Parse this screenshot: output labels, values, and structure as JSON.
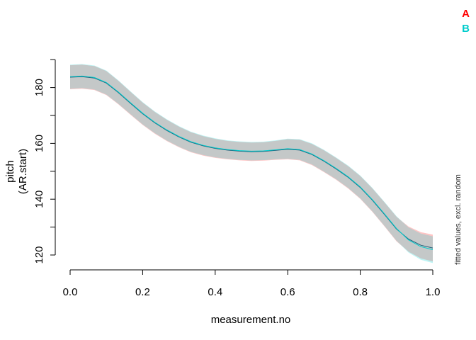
{
  "chart_data": {
    "type": "line",
    "xlabel": "measurement.no",
    "ylabel_lines": [
      "pitch",
      "(AR.start)"
    ],
    "side_note": "fitted values, excl. random",
    "xlim": [
      0,
      1
    ],
    "ylim": [
      117,
      189
    ],
    "x_ticks": [
      0.0,
      0.2,
      0.4,
      0.6,
      0.8,
      1.0
    ],
    "x_tick_labels": [
      "0.0",
      "0.2",
      "0.4",
      "0.6",
      "0.8",
      "1.0"
    ],
    "y_ticks": [
      120,
      130,
      140,
      150,
      160,
      170,
      180,
      190
    ],
    "y_tick_labels": [
      "120",
      "",
      "140",
      "",
      "160",
      "",
      "180",
      ""
    ],
    "grid": false,
    "legend_position": "top-right",
    "x": [
      0.0,
      0.033,
      0.067,
      0.1,
      0.133,
      0.167,
      0.2,
      0.233,
      0.267,
      0.3,
      0.333,
      0.367,
      0.4,
      0.433,
      0.467,
      0.5,
      0.533,
      0.567,
      0.6,
      0.633,
      0.667,
      0.7,
      0.733,
      0.767,
      0.8,
      0.833,
      0.867,
      0.9,
      0.933,
      0.967,
      1.0
    ],
    "series": [
      {
        "name": "A",
        "color": "#ff0000",
        "band_color": "#ffb0b0",
        "fit": [
          183.7,
          183.9,
          183.4,
          181.6,
          178.2,
          174.3,
          170.6,
          167.4,
          164.6,
          162.3,
          160.4,
          159.1,
          158.2,
          157.6,
          157.2,
          157.0,
          157.1,
          157.5,
          157.9,
          157.6,
          156.0,
          153.6,
          150.9,
          147.8,
          144.2,
          139.7,
          134.5,
          129.3,
          125.7,
          123.5,
          122.5
        ],
        "upper": [
          188.0,
          188.2,
          187.7,
          185.9,
          182.4,
          178.4,
          174.6,
          171.3,
          168.4,
          166.0,
          164.0,
          162.6,
          161.6,
          160.9,
          160.5,
          160.3,
          160.4,
          160.9,
          161.5,
          161.3,
          159.8,
          157.5,
          154.8,
          151.8,
          148.3,
          143.9,
          138.8,
          133.7,
          130.2,
          128.2,
          127.3
        ],
        "lower": [
          179.4,
          179.6,
          179.1,
          177.3,
          174.0,
          170.2,
          166.6,
          163.5,
          160.8,
          158.6,
          156.8,
          155.6,
          154.8,
          154.3,
          153.9,
          153.7,
          153.8,
          154.1,
          154.3,
          153.9,
          152.2,
          149.7,
          147.0,
          143.8,
          140.1,
          135.5,
          130.2,
          124.9,
          121.2,
          118.8,
          117.7
        ]
      },
      {
        "name": "B",
        "color": "#00cccc",
        "band_color": "#a8f0f0",
        "fit": [
          183.9,
          184.1,
          183.6,
          181.8,
          178.4,
          174.5,
          170.8,
          167.6,
          164.8,
          162.5,
          160.6,
          159.3,
          158.4,
          157.8,
          157.4,
          157.2,
          157.3,
          157.7,
          158.1,
          157.8,
          156.2,
          153.8,
          151.1,
          148.0,
          144.4,
          139.9,
          134.7,
          129.5,
          125.4,
          123.0,
          121.9
        ],
        "upper": [
          188.2,
          188.4,
          187.9,
          186.1,
          182.6,
          178.6,
          174.8,
          171.5,
          168.6,
          166.2,
          164.2,
          162.8,
          161.8,
          161.1,
          160.7,
          160.5,
          160.6,
          161.1,
          161.7,
          161.5,
          160.0,
          157.7,
          155.0,
          152.0,
          148.5,
          144.1,
          139.0,
          133.9,
          129.9,
          127.7,
          126.7
        ],
        "lower": [
          179.6,
          179.8,
          179.3,
          177.5,
          174.2,
          170.4,
          166.8,
          163.7,
          161.0,
          158.8,
          157.0,
          155.8,
          155.0,
          154.5,
          154.1,
          153.9,
          154.0,
          154.3,
          154.5,
          154.1,
          152.4,
          149.9,
          147.2,
          144.0,
          140.3,
          135.7,
          130.4,
          125.1,
          120.9,
          118.3,
          117.1
        ]
      }
    ],
    "overlap_color": "#c4c8c8",
    "fit_line_color": "#1f5f7a"
  }
}
